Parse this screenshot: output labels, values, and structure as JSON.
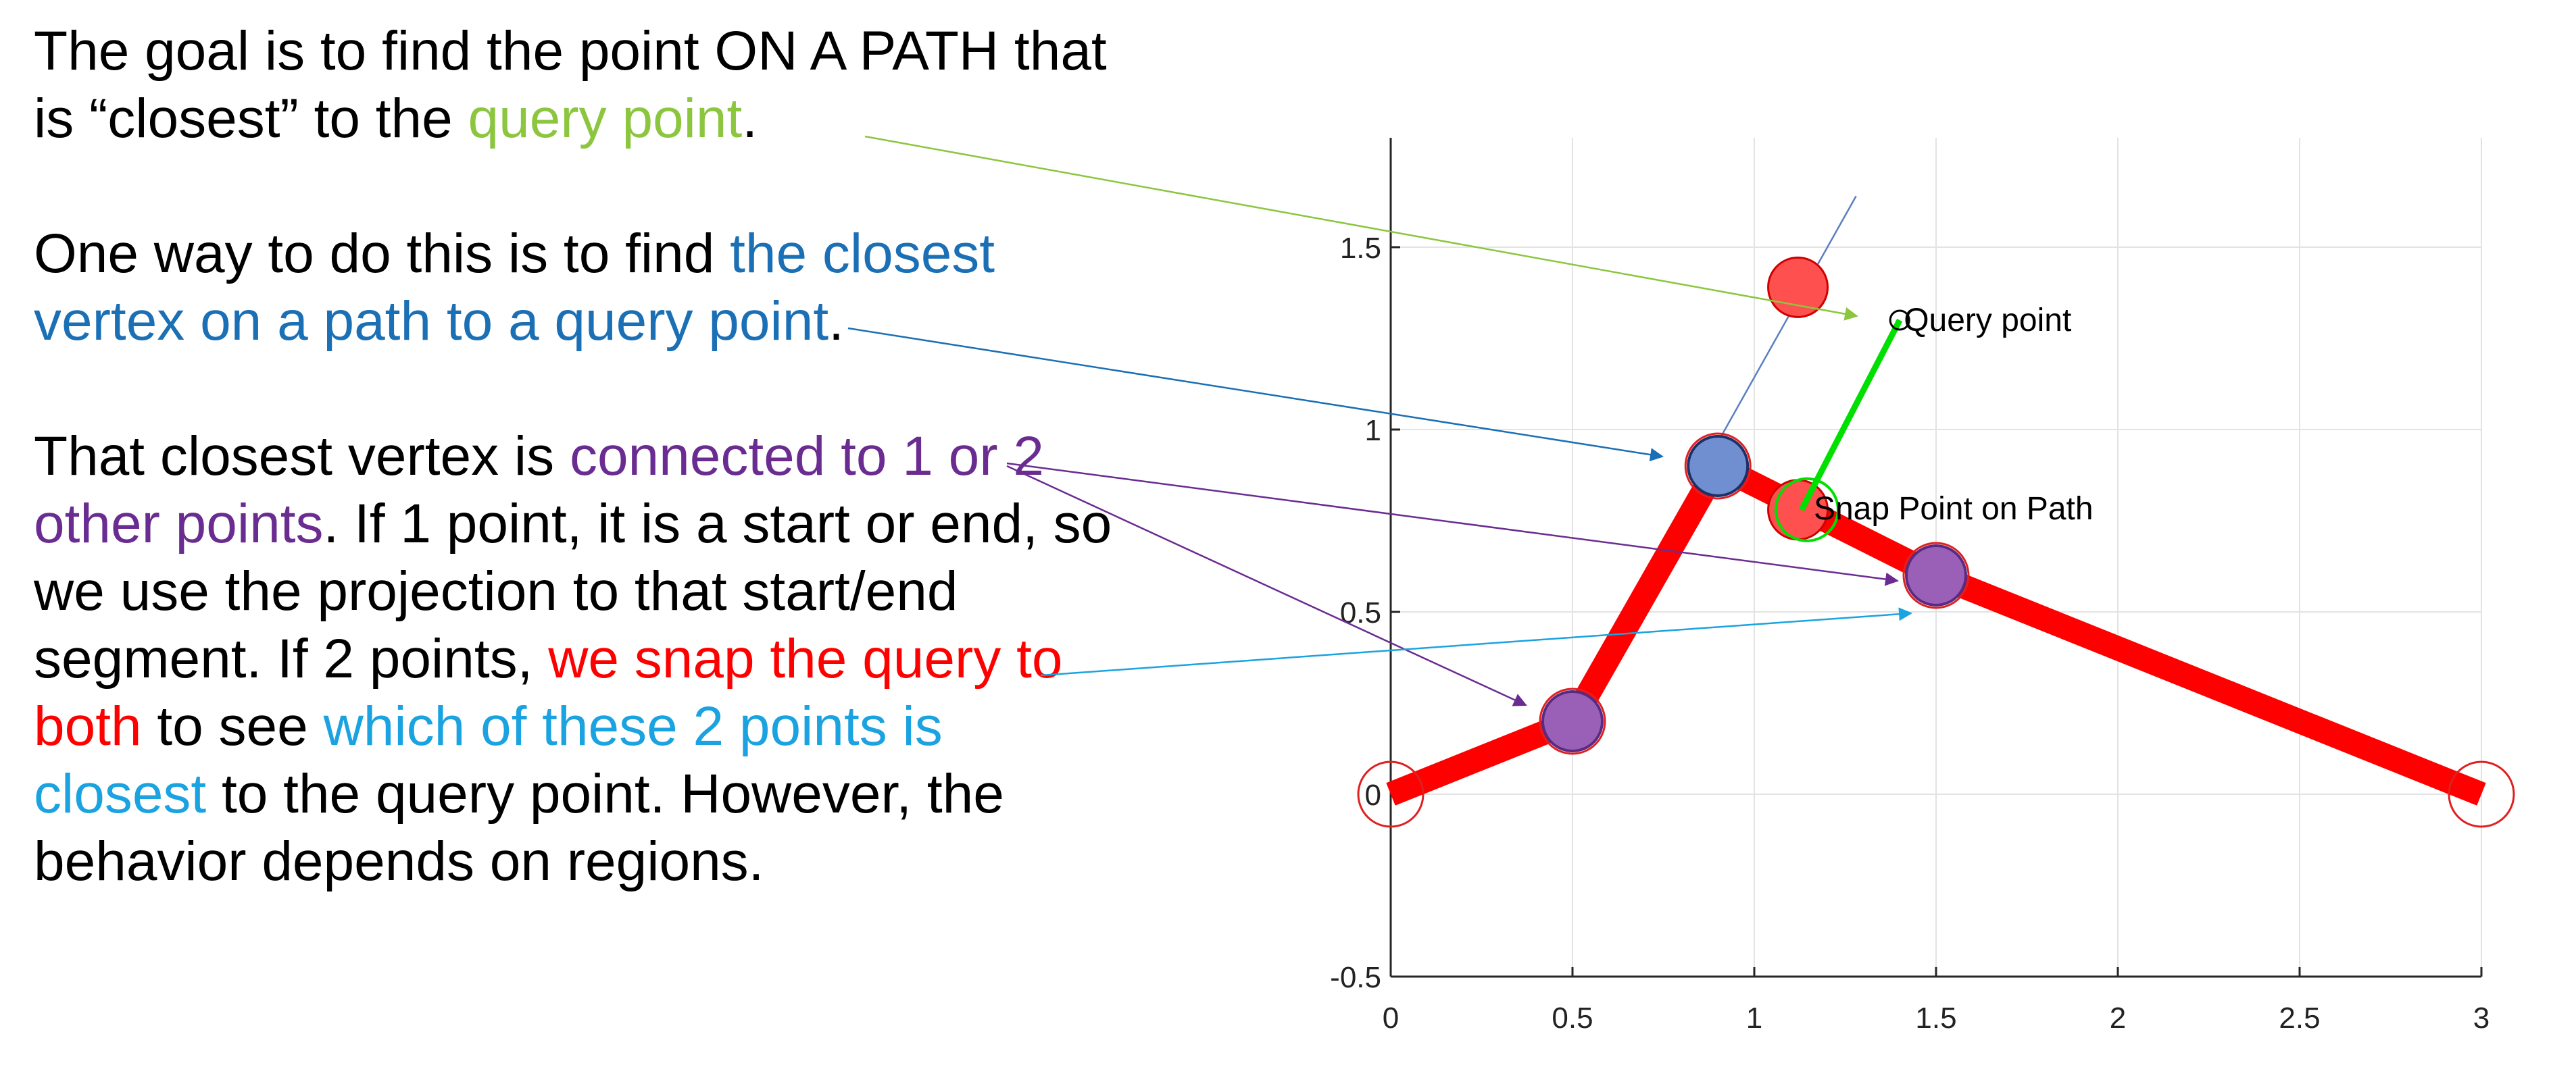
{
  "colors": {
    "text": "#000000",
    "green": "#8cc63f",
    "blue": "#1a6fb5",
    "purple": "#6a2c91",
    "red": "#ff0000",
    "cyan": "#1aa3e0",
    "path": "#ff0000",
    "snap_line": "#00e000",
    "closest_vertex": "#6f8fd0",
    "neighbor_vertex": "#9a60b8",
    "grid": "#e3e3e3"
  },
  "text": {
    "p1": {
      "a": "The goal is to find the point ON A PATH that is “closest” to the ",
      "b": "query point",
      "c": "."
    },
    "p2": {
      "a": "One way to do this is to find ",
      "b": "the closest vertex on a path to a query point",
      "c": "."
    },
    "p3": {
      "a": "That closest vertex is ",
      "b": "connected to 1 or 2 other points",
      "c": ". If 1 point, it is a start or end, so we use the projection to that start/end segment. If 2 points, ",
      "d": "we snap the query to both",
      "e": " to see ",
      "f": "which of these 2 points is closest",
      "g": " to the query point. However, the behavior depends on regions."
    }
  },
  "chart_data": {
    "type": "line",
    "xlim": [
      0,
      3
    ],
    "ylim": [
      -0.5,
      1.8
    ],
    "x_ticks": [
      0,
      0.5,
      1,
      1.5,
      2,
      2.5,
      3
    ],
    "x_tick_labels": [
      "0",
      "0.5",
      "1",
      "1.5",
      "2",
      "2.5",
      "3"
    ],
    "y_ticks": [
      -0.5,
      0,
      0.5,
      1,
      1.5
    ],
    "y_tick_labels": [
      "-0.5",
      "0",
      "0.5",
      "1",
      "1.5"
    ],
    "grid": true,
    "path": {
      "x": [
        0,
        0.5,
        0.9,
        1.5,
        3
      ],
      "y": [
        0,
        0.2,
        0.9,
        0.6,
        0
      ]
    },
    "open_vertices": [
      {
        "x": 0,
        "y": 0
      },
      {
        "x": 3,
        "y": 0
      }
    ],
    "closest_vertex": {
      "x": 0.9,
      "y": 0.9
    },
    "neighbor_vertices": [
      {
        "x": 0.5,
        "y": 0.2
      },
      {
        "x": 1.5,
        "y": 0.6
      }
    ],
    "red_points": [
      {
        "x": 1.12,
        "y": 1.39
      },
      {
        "x": 1.12,
        "y": 0.78
      }
    ],
    "query_point": {
      "x": 1.4,
      "y": 1.3,
      "label": "Query point"
    },
    "snap_point": {
      "x": 1.13,
      "y": 0.78,
      "label": "Snap Point on Path"
    },
    "guide_line": {
      "x": [
        0.88,
        1.28
      ],
      "y": [
        0.93,
        1.64
      ]
    }
  }
}
